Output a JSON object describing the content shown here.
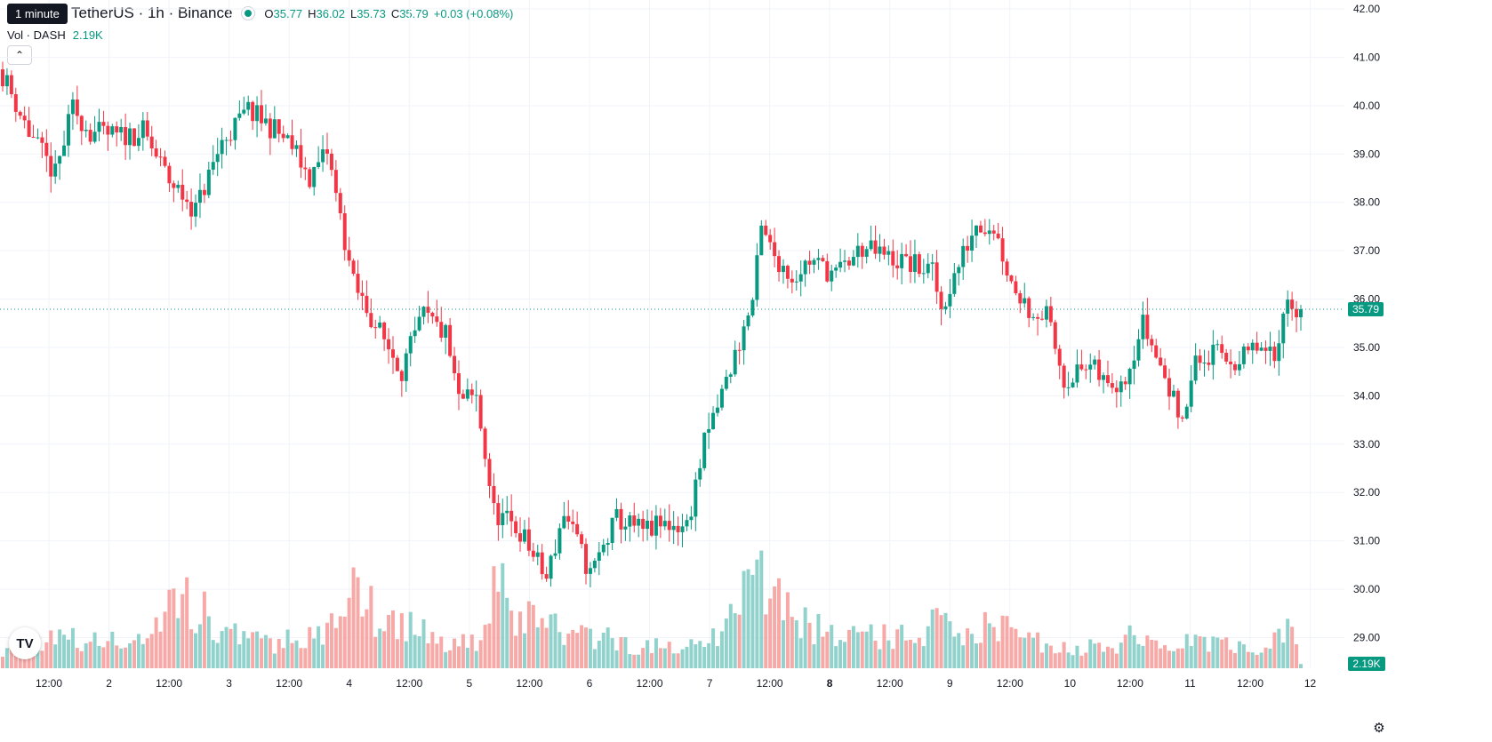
{
  "tooltip": "1 minute",
  "header": {
    "symbol": "TetherUS · 1h · Binance",
    "o_label": "O",
    "o": "35.77",
    "h_label": "H",
    "h": "36.02",
    "l_label": "L",
    "l": "35.73",
    "c_label": "C",
    "c": "35.79",
    "change": "+0.03 (+0.08%)",
    "vol_label": "Vol · DASH",
    "vol_value": "2.19K"
  },
  "icons": {
    "collapse": "chevron-up-icon",
    "logo": "tradingview-logo-icon",
    "settings": "gear-icon"
  },
  "colors": {
    "up": "#089981",
    "down": "#F23645",
    "up_vol": "#92D2CC",
    "down_vol": "#F7A9A7",
    "grid": "#F0F3FA",
    "price_line": "#089981"
  },
  "chart_data": {
    "type": "candlestick",
    "interval": "1h",
    "ylim": [
      28.5,
      42.1
    ],
    "y_ticks": [
      "42.00",
      "41.00",
      "40.00",
      "39.00",
      "38.00",
      "37.00",
      "36.00",
      "35.00",
      "34.00",
      "33.00",
      "32.00",
      "31.00",
      "30.00",
      "29.00"
    ],
    "x_ticks": [
      "12:00",
      "2",
      "12:00",
      "3",
      "12:00",
      "4",
      "12:00",
      "5",
      "12:00",
      "6",
      "12:00",
      "7",
      "12:00",
      "8",
      "12:00",
      "9",
      "12:00",
      "10",
      "12:00",
      "11",
      "12:00",
      "12"
    ],
    "x_ticks_bold": [
      false,
      false,
      false,
      false,
      false,
      false,
      false,
      false,
      false,
      false,
      false,
      false,
      false,
      true,
      false,
      false,
      false,
      false,
      false,
      false,
      false,
      false
    ],
    "last_price": "35.79",
    "last_volume": "2.19K",
    "close_anchors": [
      [
        0,
        40.65
      ],
      [
        6,
        39.45
      ],
      [
        12,
        38.55
      ],
      [
        16,
        39.95
      ],
      [
        20,
        39.45
      ],
      [
        26,
        39.35
      ],
      [
        32,
        39.45
      ],
      [
        38,
        38.45
      ],
      [
        44,
        37.85
      ],
      [
        50,
        39.25
      ],
      [
        56,
        39.9
      ],
      [
        62,
        39.5
      ],
      [
        66,
        39.15
      ],
      [
        70,
        38.5
      ],
      [
        74,
        39.05
      ],
      [
        80,
        36.3
      ],
      [
        86,
        35.3
      ],
      [
        91,
        34.55
      ],
      [
        96,
        35.65
      ],
      [
        101,
        35.25
      ],
      [
        104,
        33.9
      ],
      [
        108,
        33.95
      ],
      [
        112,
        31.6
      ],
      [
        118,
        31.2
      ],
      [
        124,
        30.2
      ],
      [
        128,
        31.6
      ],
      [
        134,
        30.3
      ],
      [
        140,
        31.45
      ],
      [
        146,
        31.2
      ],
      [
        152,
        31.35
      ],
      [
        156,
        31.3
      ],
      [
        160,
        33.0
      ],
      [
        165,
        34.3
      ],
      [
        168,
        35.1
      ],
      [
        171,
        35.95
      ],
      [
        173,
        37.4
      ],
      [
        176,
        36.9
      ],
      [
        180,
        36.45
      ],
      [
        184,
        36.8
      ],
      [
        190,
        36.5
      ],
      [
        196,
        37.05
      ],
      [
        202,
        36.85
      ],
      [
        206,
        36.75
      ],
      [
        212,
        36.55
      ],
      [
        214,
        35.8
      ],
      [
        218,
        36.7
      ],
      [
        222,
        37.6
      ],
      [
        226,
        37.5
      ],
      [
        230,
        36.35
      ],
      [
        234,
        35.8
      ],
      [
        238,
        35.65
      ],
      [
        242,
        34.35
      ],
      [
        248,
        34.6
      ],
      [
        252,
        34.2
      ],
      [
        256,
        34.45
      ],
      [
        260,
        35.5
      ],
      [
        264,
        34.6
      ],
      [
        268,
        33.65
      ],
      [
        270,
        33.9
      ],
      [
        272,
        34.65
      ],
      [
        276,
        34.85
      ],
      [
        282,
        34.7
      ],
      [
        286,
        35.0
      ],
      [
        290,
        34.7
      ],
      [
        292,
        35.9
      ],
      [
        296,
        35.79
      ]
    ],
    "volume_anchors": [
      [
        0,
        0.55
      ],
      [
        10,
        0.9
      ],
      [
        20,
        0.7
      ],
      [
        30,
        0.75
      ],
      [
        38,
        1.6
      ],
      [
        42,
        2.1
      ],
      [
        45,
        1.6
      ],
      [
        50,
        1.05
      ],
      [
        60,
        0.7
      ],
      [
        70,
        0.9
      ],
      [
        78,
        1.2
      ],
      [
        80,
        2.9
      ],
      [
        86,
        1.3
      ],
      [
        92,
        1.35
      ],
      [
        100,
        0.7
      ],
      [
        110,
        0.9
      ],
      [
        112,
        3.2
      ],
      [
        118,
        1.3
      ],
      [
        124,
        1.6
      ],
      [
        128,
        0.9
      ],
      [
        136,
        0.9
      ],
      [
        140,
        0.7
      ],
      [
        148,
        0.6
      ],
      [
        158,
        0.6
      ],
      [
        165,
        1.2
      ],
      [
        170,
        2.3
      ],
      [
        174,
        2.6
      ],
      [
        178,
        1.9
      ],
      [
        184,
        1.2
      ],
      [
        192,
        0.9
      ],
      [
        200,
        0.9
      ],
      [
        210,
        0.8
      ],
      [
        214,
        1.5
      ],
      [
        220,
        1.0
      ],
      [
        226,
        1.2
      ],
      [
        232,
        0.85
      ],
      [
        240,
        0.6
      ],
      [
        250,
        0.6
      ],
      [
        258,
        0.9
      ],
      [
        266,
        0.6
      ],
      [
        274,
        0.75
      ],
      [
        282,
        0.55
      ],
      [
        290,
        0.7
      ],
      [
        294,
        1.3
      ],
      [
        296,
        0.2
      ]
    ]
  }
}
